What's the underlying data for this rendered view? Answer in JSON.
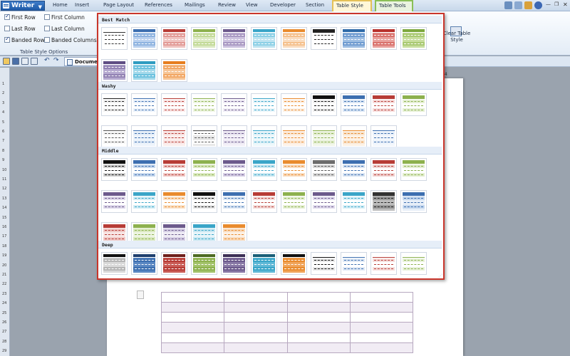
{
  "app": {
    "name": "Writer",
    "menu": [
      "Home",
      "Insert",
      "Page Layout",
      "References",
      "Mailings",
      "Review",
      "View",
      "Developer",
      "Section"
    ],
    "tab_active": "Table Style",
    "tab_context": "Table Tools"
  },
  "ribbon": {
    "options": [
      {
        "label": "First Row",
        "checked": true
      },
      {
        "label": "First Column",
        "checked": false
      },
      {
        "label": "Last Row",
        "checked": false
      },
      {
        "label": "Last Column",
        "checked": false
      },
      {
        "label": "Banded Rows",
        "checked": true
      },
      {
        "label": "Banded Columns",
        "checked": false
      }
    ],
    "group_label": "Table Style Options",
    "clear_table_style": "Clear Table Style"
  },
  "doc": {
    "tab_title": "Documen",
    "ruler_marker": "44",
    "vruler_numbers": [
      "1",
      "2",
      "3",
      "4",
      "5",
      "6",
      "7",
      "8",
      "9",
      "10",
      "11",
      "12",
      "13",
      "14",
      "15",
      "16",
      "17",
      "18",
      "19",
      "20",
      "21",
      "22",
      "23",
      "24",
      "25",
      "26",
      "27",
      "28",
      "29"
    ]
  },
  "gallery": {
    "sections": [
      {
        "title": "Best Match",
        "styles": [
          {
            "head": "#ffffff",
            "band": "#ffffff",
            "line": "#333333",
            "bg": "#ffffff"
          },
          {
            "head": "#3d6fb0",
            "band": "#8eb3e0",
            "line": "#ffffff",
            "bg": "#b9d0ee"
          },
          {
            "head": "#b73c36",
            "band": "#e29a96",
            "line": "#ffffff",
            "bg": "#efc3c0"
          },
          {
            "head": "#8db14e",
            "band": "#c3da98",
            "line": "#ffffff",
            "bg": "#dbe9c1"
          },
          {
            "head": "#6c5a8c",
            "band": "#a898c2",
            "line": "#ffffff",
            "bg": "#cbc1de"
          },
          {
            "head": "#3aa5c8",
            "band": "#8cd0e6",
            "line": "#ffffff",
            "bg": "#bde3f0"
          },
          {
            "head": "#e98b2e",
            "band": "#f5c08c",
            "line": "#ffffff",
            "bg": "#f9dcbf"
          },
          {
            "head": "#222222",
            "band": "#ffffff",
            "line": "#222222",
            "bg": "#ffffff"
          },
          {
            "head": "#2f6aa8",
            "band": "#6f9bd0",
            "line": "#ffffff",
            "bg": "#9dbde2"
          },
          {
            "head": "#b8312c",
            "band": "#d9716c",
            "line": "#ffffff",
            "bg": "#e8a09c"
          },
          {
            "head": "#7da83e",
            "band": "#a9c972",
            "line": "#ffffff",
            "bg": "#c8de9e"
          },
          {
            "head": "#5e4d83",
            "band": "#9282b3",
            "line": "#ffffff",
            "bg": "#b5a9cf"
          },
          {
            "head": "#2e9bc0",
            "band": "#6cc1de",
            "line": "#ffffff",
            "bg": "#a2d8ea"
          },
          {
            "head": "#e67d1e",
            "band": "#f2a764",
            "line": "#ffffff",
            "bg": "#f6c597"
          }
        ]
      },
      {
        "title": "Washy",
        "styles": [
          {
            "head": "#ffffff",
            "band": "#f2f2f2",
            "line": "#222222",
            "bg": "#ffffff"
          },
          {
            "head": "#ffffff",
            "band": "#eaf1fa",
            "line": "#3d6fb0",
            "bg": "#ffffff"
          },
          {
            "head": "#ffffff",
            "band": "#faeaea",
            "line": "#b73c36",
            "bg": "#ffffff"
          },
          {
            "head": "#ffffff",
            "band": "#eef5e3",
            "line": "#8db14e",
            "bg": "#ffffff"
          },
          {
            "head": "#ffffff",
            "band": "#efecf5",
            "line": "#6c5a8c",
            "bg": "#ffffff"
          },
          {
            "head": "#ffffff",
            "band": "#e8f5fa",
            "line": "#3aa5c8",
            "bg": "#ffffff"
          },
          {
            "head": "#ffffff",
            "band": "#fcf1e6",
            "line": "#e98b2e",
            "bg": "#ffffff"
          },
          {
            "head": "#111111",
            "band": "#f0f0f0",
            "line": "#111111",
            "bg": "#ffffff"
          },
          {
            "head": "#3d6fb0",
            "band": "#dbe7f5",
            "line": "#3d6fb0",
            "bg": "#ffffff"
          },
          {
            "head": "#b73c36",
            "band": "#f6dcdb",
            "line": "#b73c36",
            "bg": "#ffffff"
          },
          {
            "head": "#8db14e",
            "band": "#e6f0d5",
            "line": "#8db14e",
            "bg": "#ffffff"
          },
          {
            "head": "#ffffff",
            "band": "#f5f5f5",
            "line": "#555555",
            "bg": "#ffffff"
          },
          {
            "head": "#ffffff",
            "band": "#e5eef8",
            "line": "#3d6fb0",
            "bg": "#eef4fb"
          },
          {
            "head": "#ffffff",
            "band": "#f8e3e2",
            "line": "#b73c36",
            "bg": "#fbefee"
          },
          {
            "head": "#ffffff",
            "band": "#ffffff",
            "line": "#555555",
            "bg": "#e9e9e9"
          },
          {
            "head": "#ffffff",
            "band": "#e9e5f1",
            "line": "#6c5a8c",
            "bg": "#f3f0f8"
          },
          {
            "head": "#ffffff",
            "band": "#e2f2f8",
            "line": "#3aa5c8",
            "bg": "#eef8fb"
          },
          {
            "head": "#ffffff",
            "band": "#fbe9d8",
            "line": "#e98b2e",
            "bg": "#fdf3ea"
          },
          {
            "head": "#ffffff",
            "band": "#e6efd6",
            "line": "#8db14e",
            "bg": "#f2f7ea"
          },
          {
            "head": "#ffffff",
            "band": "#f8e6d2",
            "line": "#e98b2e",
            "bg": "#fdf2e6"
          },
          {
            "head": "#ffffff",
            "band": "#eaf1fa",
            "line": "#3d6fb0",
            "bg": "#f3f7fc"
          }
        ]
      },
      {
        "title": "Middle",
        "styles": [
          {
            "head": "#111111",
            "band": "#d0d0d0",
            "line": "#111111",
            "bg": "#ffffff"
          },
          {
            "head": "#3d6fb0",
            "band": "#c6d8ee",
            "line": "#3d6fb0",
            "bg": "#ffffff"
          },
          {
            "head": "#b73c36",
            "band": "#f0c9c6",
            "line": "#b73c36",
            "bg": "#ffffff"
          },
          {
            "head": "#8db14e",
            "band": "#dbe9c1",
            "line": "#8db14e",
            "bg": "#ffffff"
          },
          {
            "head": "#6c5a8c",
            "band": "#d6cfe5",
            "line": "#6c5a8c",
            "bg": "#ffffff"
          },
          {
            "head": "#3aa5c8",
            "band": "#c9e8f2",
            "line": "#3aa5c8",
            "bg": "#ffffff"
          },
          {
            "head": "#e98b2e",
            "band": "#f9dcbf",
            "line": "#e98b2e",
            "bg": "#ffffff"
          },
          {
            "head": "#6e6e6e",
            "band": "#d9d9d9",
            "line": "#555555",
            "bg": "#ffffff"
          },
          {
            "head": "#3d6fb0",
            "band": "#d7e3f2",
            "line": "#3d6fb0",
            "bg": "#ffffff"
          },
          {
            "head": "#b73c36",
            "band": "#f1d4d2",
            "line": "#b73c36",
            "bg": "#ffffff"
          },
          {
            "head": "#8db14e",
            "band": "#e3eed0",
            "line": "#8db14e",
            "bg": "#ffffff"
          },
          {
            "head": "#6c5a8c",
            "band": "#ddd7ea",
            "line": "#6c5a8c",
            "bg": "#ffffff"
          },
          {
            "head": "#3aa5c8",
            "band": "#d3edf5",
            "line": "#3aa5c8",
            "bg": "#ffffff"
          },
          {
            "head": "#e98b2e",
            "band": "#fae2c9",
            "line": "#e98b2e",
            "bg": "#ffffff"
          },
          {
            "head": "#111111",
            "band": "#e5e5e5",
            "line": "#111111",
            "bg": "#ffffff"
          },
          {
            "head": "#3d6fb0",
            "band": "#dce7f4",
            "line": "#3d6fb0",
            "bg": "#ffffff"
          },
          {
            "head": "#b73c36",
            "band": "#f4dcda",
            "line": "#b73c36",
            "bg": "#ffffff"
          },
          {
            "head": "#8db14e",
            "band": "#e6f0d5",
            "line": "#8db14e",
            "bg": "#ffffff"
          },
          {
            "head": "#6c5a8c",
            "band": "#e1dcee",
            "line": "#6c5a8c",
            "bg": "#ffffff"
          },
          {
            "head": "#3aa5c8",
            "band": "#d9f0f7",
            "line": "#3aa5c8",
            "bg": "#ffffff"
          },
          {
            "head": "#333333",
            "band": "#9a9a9a",
            "line": "#222222",
            "bg": "#bdbdbd"
          },
          {
            "head": "#3d6fb0",
            "band": "#c6d8ee",
            "line": "#3d6fb0",
            "bg": "#e8eff8"
          },
          {
            "head": "#b73c36",
            "band": "#f0c9c6",
            "line": "#b73c36",
            "bg": "#f8e6e5"
          },
          {
            "head": "#8db14e",
            "band": "#dbe9c1",
            "line": "#8db14e",
            "bg": "#eef5e3"
          },
          {
            "head": "#6c5a8c",
            "band": "#d6cfe5",
            "line": "#6c5a8c",
            "bg": "#efecf5"
          },
          {
            "head": "#3aa5c8",
            "band": "#c9e8f2",
            "line": "#3aa5c8",
            "bg": "#e8f5fa"
          },
          {
            "head": "#e98b2e",
            "band": "#f9dcbf",
            "line": "#e98b2e",
            "bg": "#fcf1e6"
          }
        ]
      },
      {
        "title": "Deep",
        "styles": [
          {
            "head": "#111111",
            "band": "#b5b5b5",
            "line": "#ffffff",
            "bg": "#d9d9d9"
          },
          {
            "head": "#1e3f6e",
            "band": "#3d6fb0",
            "line": "#ffffff",
            "bg": "#5a87c2"
          },
          {
            "head": "#6e1f1b",
            "band": "#b73c36",
            "line": "#ffffff",
            "bg": "#c95c56"
          },
          {
            "head": "#4d6a22",
            "band": "#8db14e",
            "line": "#ffffff",
            "bg": "#a2c26a"
          },
          {
            "head": "#3c2f55",
            "band": "#6c5a8c",
            "line": "#ffffff",
            "bg": "#8878a5"
          },
          {
            "head": "#1a5f78",
            "band": "#3aa5c8",
            "line": "#ffffff",
            "bg": "#5fb8d6"
          },
          {
            "head": "#111111",
            "band": "#e98b2e",
            "line": "#ffffff",
            "bg": "#f0a45a"
          },
          {
            "head": "#ffffff",
            "band": "#e8e8e8",
            "line": "#111111",
            "bg": "#ffffff"
          },
          {
            "head": "#ffffff",
            "band": "#e0e9f5",
            "line": "#3d6fb0",
            "bg": "#ffffff"
          },
          {
            "head": "#ffffff",
            "band": "#f6dedc",
            "line": "#b73c36",
            "bg": "#ffffff"
          },
          {
            "head": "#ffffff",
            "band": "#e8f1da",
            "line": "#8db14e",
            "bg": "#ffffff"
          },
          {
            "head": "#ffffff",
            "band": "#e9e5f1",
            "line": "#6c5a8c",
            "bg": "#ffffff"
          },
          {
            "head": "#ffffff",
            "band": "#dff1f7",
            "line": "#3aa5c8",
            "bg": "#ffffff"
          },
          {
            "head": "#ffffff",
            "band": "#fbe7d3",
            "line": "#e98b2e",
            "bg": "#ffffff"
          }
        ]
      }
    ]
  }
}
